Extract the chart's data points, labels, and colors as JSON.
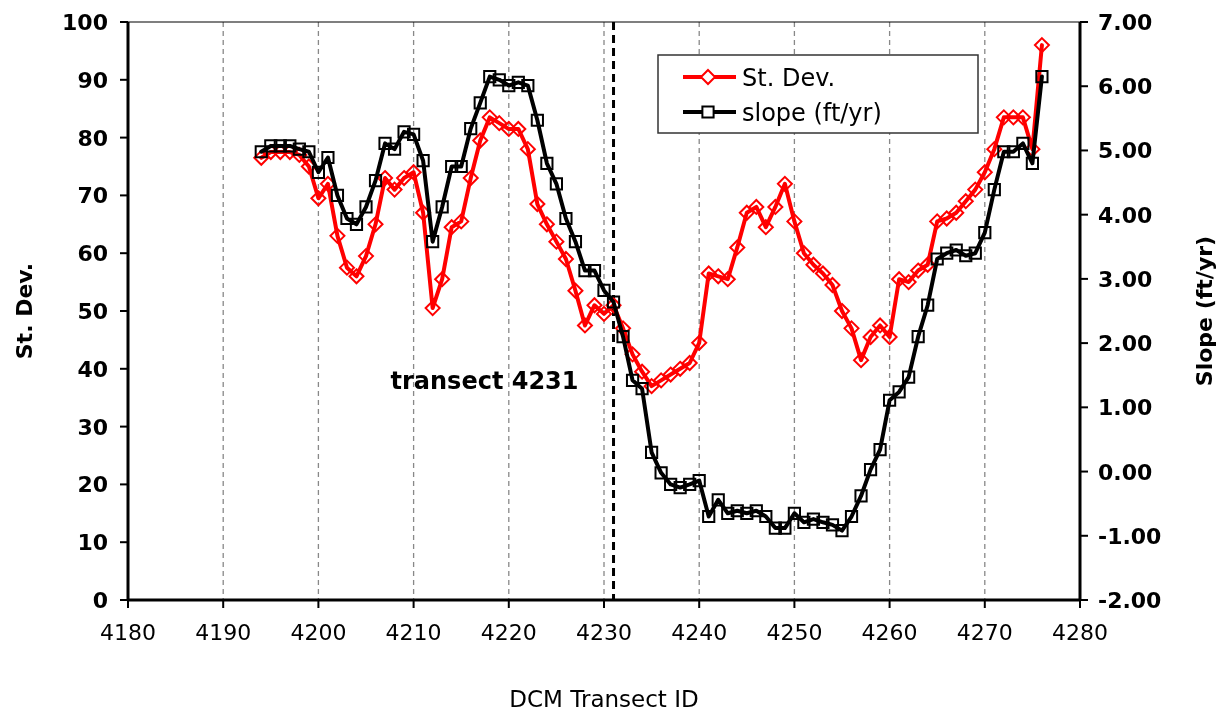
{
  "chart_data": {
    "type": "line",
    "xlabel": "DCM Transect ID",
    "ylabel": "St. Dev.",
    "y2label": "Slope (ft/yr)",
    "x": [
      4194,
      4195,
      4196,
      4197,
      4198,
      4199,
      4200,
      4201,
      4202,
      4203,
      4204,
      4205,
      4206,
      4207,
      4208,
      4209,
      4210,
      4211,
      4212,
      4213,
      4214,
      4215,
      4216,
      4217,
      4218,
      4219,
      4220,
      4221,
      4222,
      4223,
      4224,
      4225,
      4226,
      4227,
      4228,
      4229,
      4230,
      4231,
      4232,
      4233,
      4234,
      4235,
      4236,
      4237,
      4238,
      4239,
      4240,
      4241,
      4242,
      4243,
      4244,
      4245,
      4246,
      4247,
      4248,
      4249,
      4250,
      4251,
      4252,
      4253,
      4254,
      4255,
      4256,
      4257,
      4258,
      4259,
      4260,
      4261,
      4262,
      4263,
      4264,
      4265,
      4266,
      4267,
      4268,
      4269,
      4270,
      4271,
      4272,
      4273,
      4274,
      4275,
      4276
    ],
    "series": [
      {
        "name": "St. Dev.",
        "color": "#ff0000",
        "marker": "diamond",
        "values": [
          76.5,
          77.5,
          77.5,
          77.5,
          77,
          75,
          69.5,
          72,
          63,
          57.5,
          56,
          59.5,
          65,
          73,
          71,
          73,
          74,
          67,
          50.5,
          55.5,
          64.5,
          65.5,
          73,
          79.5,
          83.5,
          82.5,
          81.5,
          81.5,
          78,
          68.5,
          65,
          62,
          59,
          53.5,
          47.5,
          51,
          49.5,
          51,
          47,
          42.5,
          39.5,
          37,
          38,
          39,
          40,
          41,
          44.5,
          56.5,
          56,
          55.5,
          61,
          67,
          68,
          64.5,
          68,
          72,
          65.5,
          60,
          58,
          56.5,
          54.5,
          50,
          47,
          41.5,
          45.5,
          47.5,
          45.5,
          55.5,
          55,
          57,
          58,
          65.5,
          66,
          67,
          69,
          71,
          74,
          78,
          83.5,
          83.5,
          83.5,
          78,
          96
        ]
      },
      {
        "name": "slope (ft/yr)",
        "color": "#000000",
        "marker": "square",
        "axis": "y2",
        "values": [
          4.98,
          5.07,
          5.07,
          5.07,
          5.02,
          4.98,
          4.66,
          4.89,
          4.3,
          3.94,
          3.85,
          4.12,
          4.53,
          5.11,
          5.02,
          5.29,
          5.25,
          4.84,
          3.58,
          4.12,
          4.75,
          4.75,
          5.34,
          5.74,
          6.15,
          6.1,
          6.01,
          6.06,
          6.01,
          5.47,
          4.8,
          4.48,
          3.94,
          3.58,
          3.13,
          3.13,
          2.82,
          2.64,
          2.1,
          1.42,
          1.29,
          0.3,
          -0.02,
          -0.2,
          -0.25,
          -0.2,
          -0.14,
          -0.7,
          -0.44,
          -0.65,
          -0.61,
          -0.65,
          -0.61,
          -0.7,
          -0.88,
          -0.88,
          -0.65,
          -0.79,
          -0.74,
          -0.79,
          -0.83,
          -0.92,
          -0.7,
          -0.38,
          0.03,
          0.34,
          1.11,
          1.24,
          1.47,
          2.1,
          2.59,
          3.31,
          3.4,
          3.45,
          3.36,
          3.4,
          3.72,
          4.39,
          4.98,
          4.98,
          5.11,
          4.8,
          6.15
        ]
      }
    ],
    "xlim": [
      4180,
      4280
    ],
    "xticks": [
      4180,
      4190,
      4200,
      4210,
      4220,
      4230,
      4240,
      4250,
      4260,
      4270,
      4280
    ],
    "ylim": [
      0,
      100
    ],
    "yticks": [
      0,
      10,
      20,
      30,
      40,
      50,
      60,
      70,
      80,
      90,
      100
    ],
    "y2lim": [
      -2,
      7
    ],
    "y2ticks": [
      {
        "value": -2,
        "label": "-2.00"
      },
      {
        "value": -1,
        "label": "-1.00"
      },
      {
        "value": 0,
        "label": "0.00"
      },
      {
        "value": 1,
        "label": "1.00"
      },
      {
        "value": 2,
        "label": "2.00"
      },
      {
        "value": 3,
        "label": "3.00"
      },
      {
        "value": 4,
        "label": "4.00"
      },
      {
        "value": 5,
        "label": "5.00"
      },
      {
        "value": 6,
        "label": "6.00"
      },
      {
        "value": 7,
        "label": "7.00"
      }
    ],
    "ref_lines": [
      {
        "axis": "x",
        "value": 4231,
        "label": "transect 4231",
        "color": "#000000",
        "line_style": "dashed"
      }
    ],
    "grid": "x",
    "legend": "top right",
    "line_style": "solid"
  }
}
